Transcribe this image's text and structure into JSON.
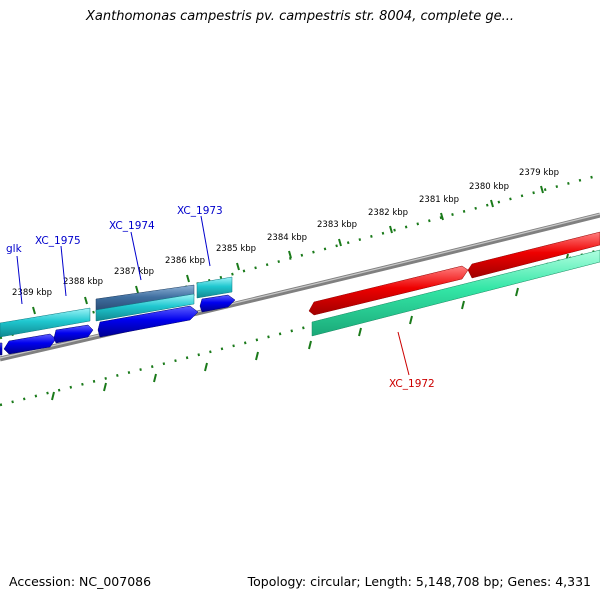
{
  "title": "Xanthomonas campestris pv. campestris str. 8004, complete ge...",
  "footer": {
    "accession": "Accession: NC_007086",
    "stats": "Topology: circular; Length: 5,148,708 bp; Genes: 4,331"
  },
  "ruler": {
    "tick_labels": [
      "2379 kbp",
      "2380 kbp",
      "2381 kbp",
      "2382 kbp",
      "2383 kbp",
      "2384 kbp",
      "2385 kbp",
      "2386 kbp",
      "2387 kbp",
      "2388 kbp",
      "2389 kbp"
    ]
  },
  "gene_labels": [
    {
      "text": "glk",
      "color": "#0000cc"
    },
    {
      "text": "XC_1975",
      "color": "#0000cc"
    },
    {
      "text": "XC_1974",
      "color": "#0000cc"
    },
    {
      "text": "XC_1973",
      "color": "#0000cc"
    },
    {
      "text": "XC_1972",
      "color": "#cc0000"
    }
  ],
  "colors": {
    "backbone": "#808080",
    "ruler_ticks": "#1a7a1a",
    "forward_gene": "#ee0000",
    "forward_feature": "#33e6a6",
    "reverse_gene": "#0000ee",
    "reverse_feature": "#20c8d0",
    "reverse_feature_dark": "#3f6fa0"
  }
}
